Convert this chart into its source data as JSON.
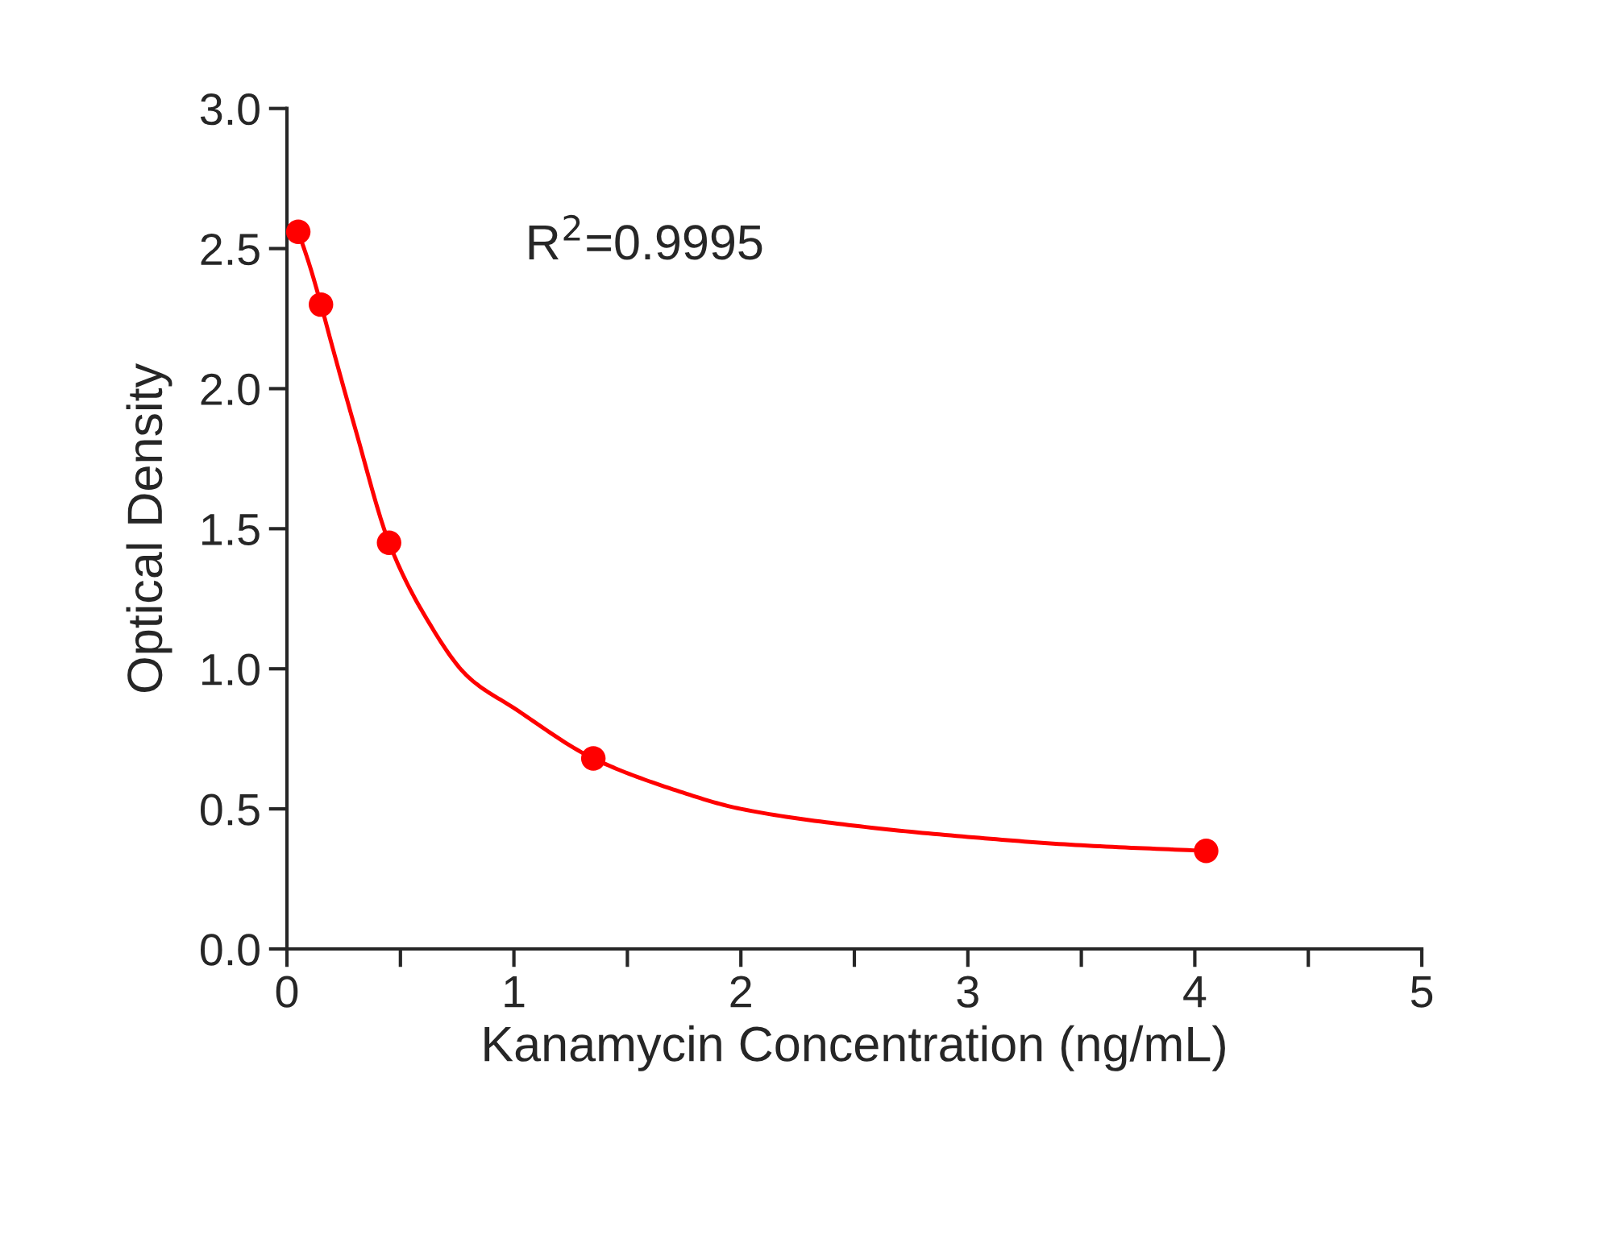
{
  "chart_data": {
    "type": "scatter",
    "xlabel": "Kanamycin Concentration (ng/mL)",
    "ylabel": "Optical Density",
    "annotations": [
      "R$^{2}$=0.9995"
    ],
    "series": [
      {
        "color": "#ff0000",
        "marker": "circle",
        "x": [
          0.05,
          0.15,
          0.45,
          1.35,
          4.05
        ],
        "values": [
          2.56,
          2.3,
          1.45,
          0.68,
          0.35
        ]
      },
      {
        "type": "line",
        "color": "#ff0000",
        "marker": "none",
        "line_style": "solid",
        "x": [
          0.05,
          0.1,
          0.15,
          0.2,
          0.3,
          0.45,
          0.6,
          0.8,
          1.0,
          1.35,
          1.7,
          2.0,
          2.5,
          3.0,
          3.5,
          4.05
        ],
        "values": [
          2.56,
          2.44,
          2.3,
          2.15,
          1.86,
          1.45,
          1.2,
          0.97,
          0.86,
          0.68,
          0.57,
          0.5,
          0.44,
          0.4,
          0.37,
          0.35
        ]
      }
    ],
    "xlim": [
      0,
      5
    ],
    "ylim": [
      0,
      3.0
    ],
    "xticks": [
      0,
      {
        "value": 0.5,
        "label": null
      },
      1,
      {
        "value": 1.5,
        "label": null
      },
      2,
      {
        "value": 2.5,
        "label": null
      },
      3,
      {
        "value": 3.5,
        "label": null
      },
      4,
      {
        "value": 4.5,
        "label": null
      },
      5
    ],
    "yticks": [
      {
        "value": 0,
        "label": "0.0"
      },
      {
        "value": 0.5,
        "label": "0.5"
      },
      {
        "value": 1,
        "label": "1.0"
      },
      {
        "value": 1.5,
        "label": "1.5"
      },
      {
        "value": 2,
        "label": "2.0"
      },
      {
        "value": 2.5,
        "label": "2.5"
      },
      {
        "value": 3,
        "label": "3.0"
      }
    ],
    "grid": false,
    "legend": false
  }
}
